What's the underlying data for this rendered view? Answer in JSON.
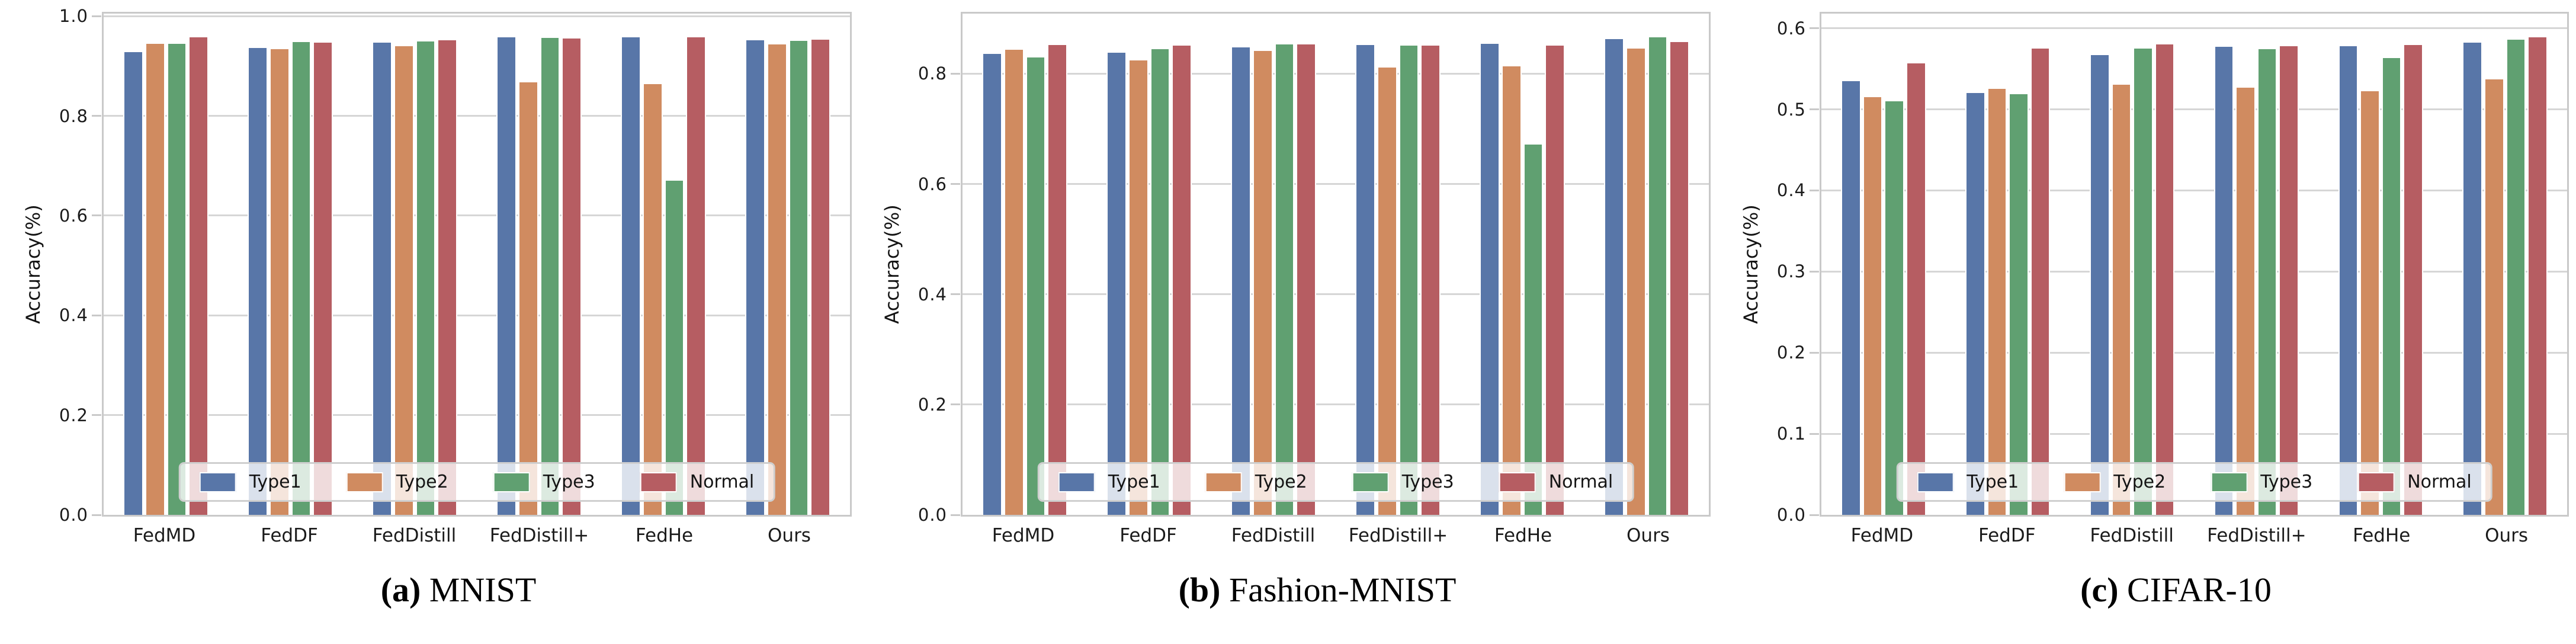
{
  "figure": {
    "description": "Three grouped bar charts comparing federated learning methods under Type1/Type2/Type3/Normal conditions on three datasets",
    "background": "#ffffff"
  },
  "palette": {
    "series_colors": [
      "#5876A8",
      "#D08B60",
      "#60A071",
      "#B65D62"
    ],
    "grid_gray": "#d6d6d6",
    "spine_gray": "#c9c9c9",
    "text_dark": "#1b1b1b"
  },
  "legend": {
    "labels": [
      "Type1",
      "Type2",
      "Type3",
      "Normal"
    ],
    "position": "lower center"
  },
  "chart_data": [
    {
      "type": "bar",
      "caption_prefix": "(a)",
      "caption_title": "MNIST",
      "ylabel": "Accuracy(%)",
      "xlabel": "",
      "categories": [
        "FedMD",
        "FedDF",
        "FedDistill",
        "FedDistill+",
        "FedHe",
        "Ours"
      ],
      "yticks": [
        "0.0",
        "0.2",
        "0.4",
        "0.6",
        "0.8",
        "1.0"
      ],
      "ytick_values": [
        0,
        0.2,
        0.4,
        0.6,
        0.8,
        1.0
      ],
      "ylim": [
        0,
        1.005
      ],
      "grid": true,
      "legend_position": "lower center",
      "series": [
        {
          "name": "Type1",
          "values": [
            0.928,
            0.936,
            0.947,
            0.957,
            0.957,
            0.951
          ]
        },
        {
          "name": "Type2",
          "values": [
            0.945,
            0.934,
            0.94,
            0.867,
            0.864,
            0.943
          ]
        },
        {
          "name": "Type3",
          "values": [
            0.944,
            0.948,
            0.949,
            0.956,
            0.67,
            0.95
          ]
        },
        {
          "name": "Normal",
          "values": [
            0.957,
            0.947,
            0.951,
            0.955,
            0.957,
            0.953
          ]
        }
      ]
    },
    {
      "type": "bar",
      "caption_prefix": "(b)",
      "caption_title": "Fashion-MNIST",
      "ylabel": "Accuracy(%)",
      "xlabel": "",
      "categories": [
        "FedMD",
        "FedDF",
        "FedDistill",
        "FedDistill+",
        "FedHe",
        "Ours"
      ],
      "yticks": [
        "0.0",
        "0.2",
        "0.4",
        "0.6",
        "0.8"
      ],
      "ytick_values": [
        0,
        0.2,
        0.4,
        0.6,
        0.8
      ],
      "ylim": [
        0,
        0.909
      ],
      "grid": true,
      "legend_position": "lower center",
      "series": [
        {
          "name": "Type1",
          "values": [
            0.836,
            0.838,
            0.848,
            0.852,
            0.854,
            0.863
          ]
        },
        {
          "name": "Type2",
          "values": [
            0.843,
            0.824,
            0.841,
            0.811,
            0.813,
            0.846
          ]
        },
        {
          "name": "Type3",
          "values": [
            0.829,
            0.845,
            0.853,
            0.851,
            0.672,
            0.866
          ]
        },
        {
          "name": "Normal",
          "values": [
            0.852,
            0.851,
            0.853,
            0.851,
            0.851,
            0.857
          ]
        }
      ]
    },
    {
      "type": "bar",
      "caption_prefix": "(c)",
      "caption_title": "CIFAR-10",
      "ylabel": "Accuracy(%)",
      "xlabel": "",
      "categories": [
        "FedMD",
        "FedDF",
        "FedDistill",
        "FedDistill+",
        "FedHe",
        "Ours"
      ],
      "yticks": [
        "0.0",
        "0.1",
        "0.2",
        "0.3",
        "0.4",
        "0.5",
        "0.6"
      ],
      "ytick_values": [
        0,
        0.1,
        0.2,
        0.3,
        0.4,
        0.5,
        0.6
      ],
      "ylim": [
        0,
        0.618
      ],
      "grid": true,
      "legend_position": "lower center",
      "series": [
        {
          "name": "Type1",
          "values": [
            0.535,
            0.52,
            0.567,
            0.577,
            0.578,
            0.582
          ]
        },
        {
          "name": "Type2",
          "values": [
            0.515,
            0.525,
            0.53,
            0.527,
            0.522,
            0.537
          ]
        },
        {
          "name": "Type3",
          "values": [
            0.51,
            0.519,
            0.575,
            0.574,
            0.563,
            0.586
          ]
        },
        {
          "name": "Normal",
          "values": [
            0.557,
            0.575,
            0.58,
            0.578,
            0.579,
            0.589
          ]
        }
      ]
    }
  ]
}
